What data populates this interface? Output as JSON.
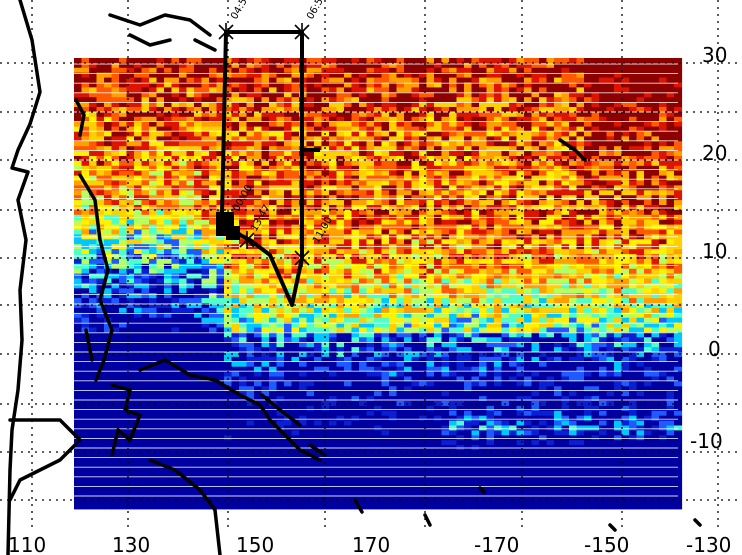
{
  "map": {
    "lat_labels": [
      "30",
      "20",
      "10",
      "0",
      "-10"
    ],
    "lon_labels": [
      "110",
      "130",
      "150",
      "170",
      "-170",
      "-150",
      "-130"
    ],
    "palette": [
      "#0000a0",
      "#0a1ed2",
      "#1e5aff",
      "#00c8ff",
      "#50ffc8",
      "#b4ff64",
      "#fff000",
      "#ffd000",
      "#ffa000",
      "#ff5a00",
      "#dc1400",
      "#8c0000"
    ],
    "track_color": "#000000",
    "missing_color": "#ffffff",
    "track_labels": {
      "start": "04:53",
      "corner": "06:53",
      "turn": "11:00",
      "mid": "13:47",
      "end": "00:00"
    }
  }
}
